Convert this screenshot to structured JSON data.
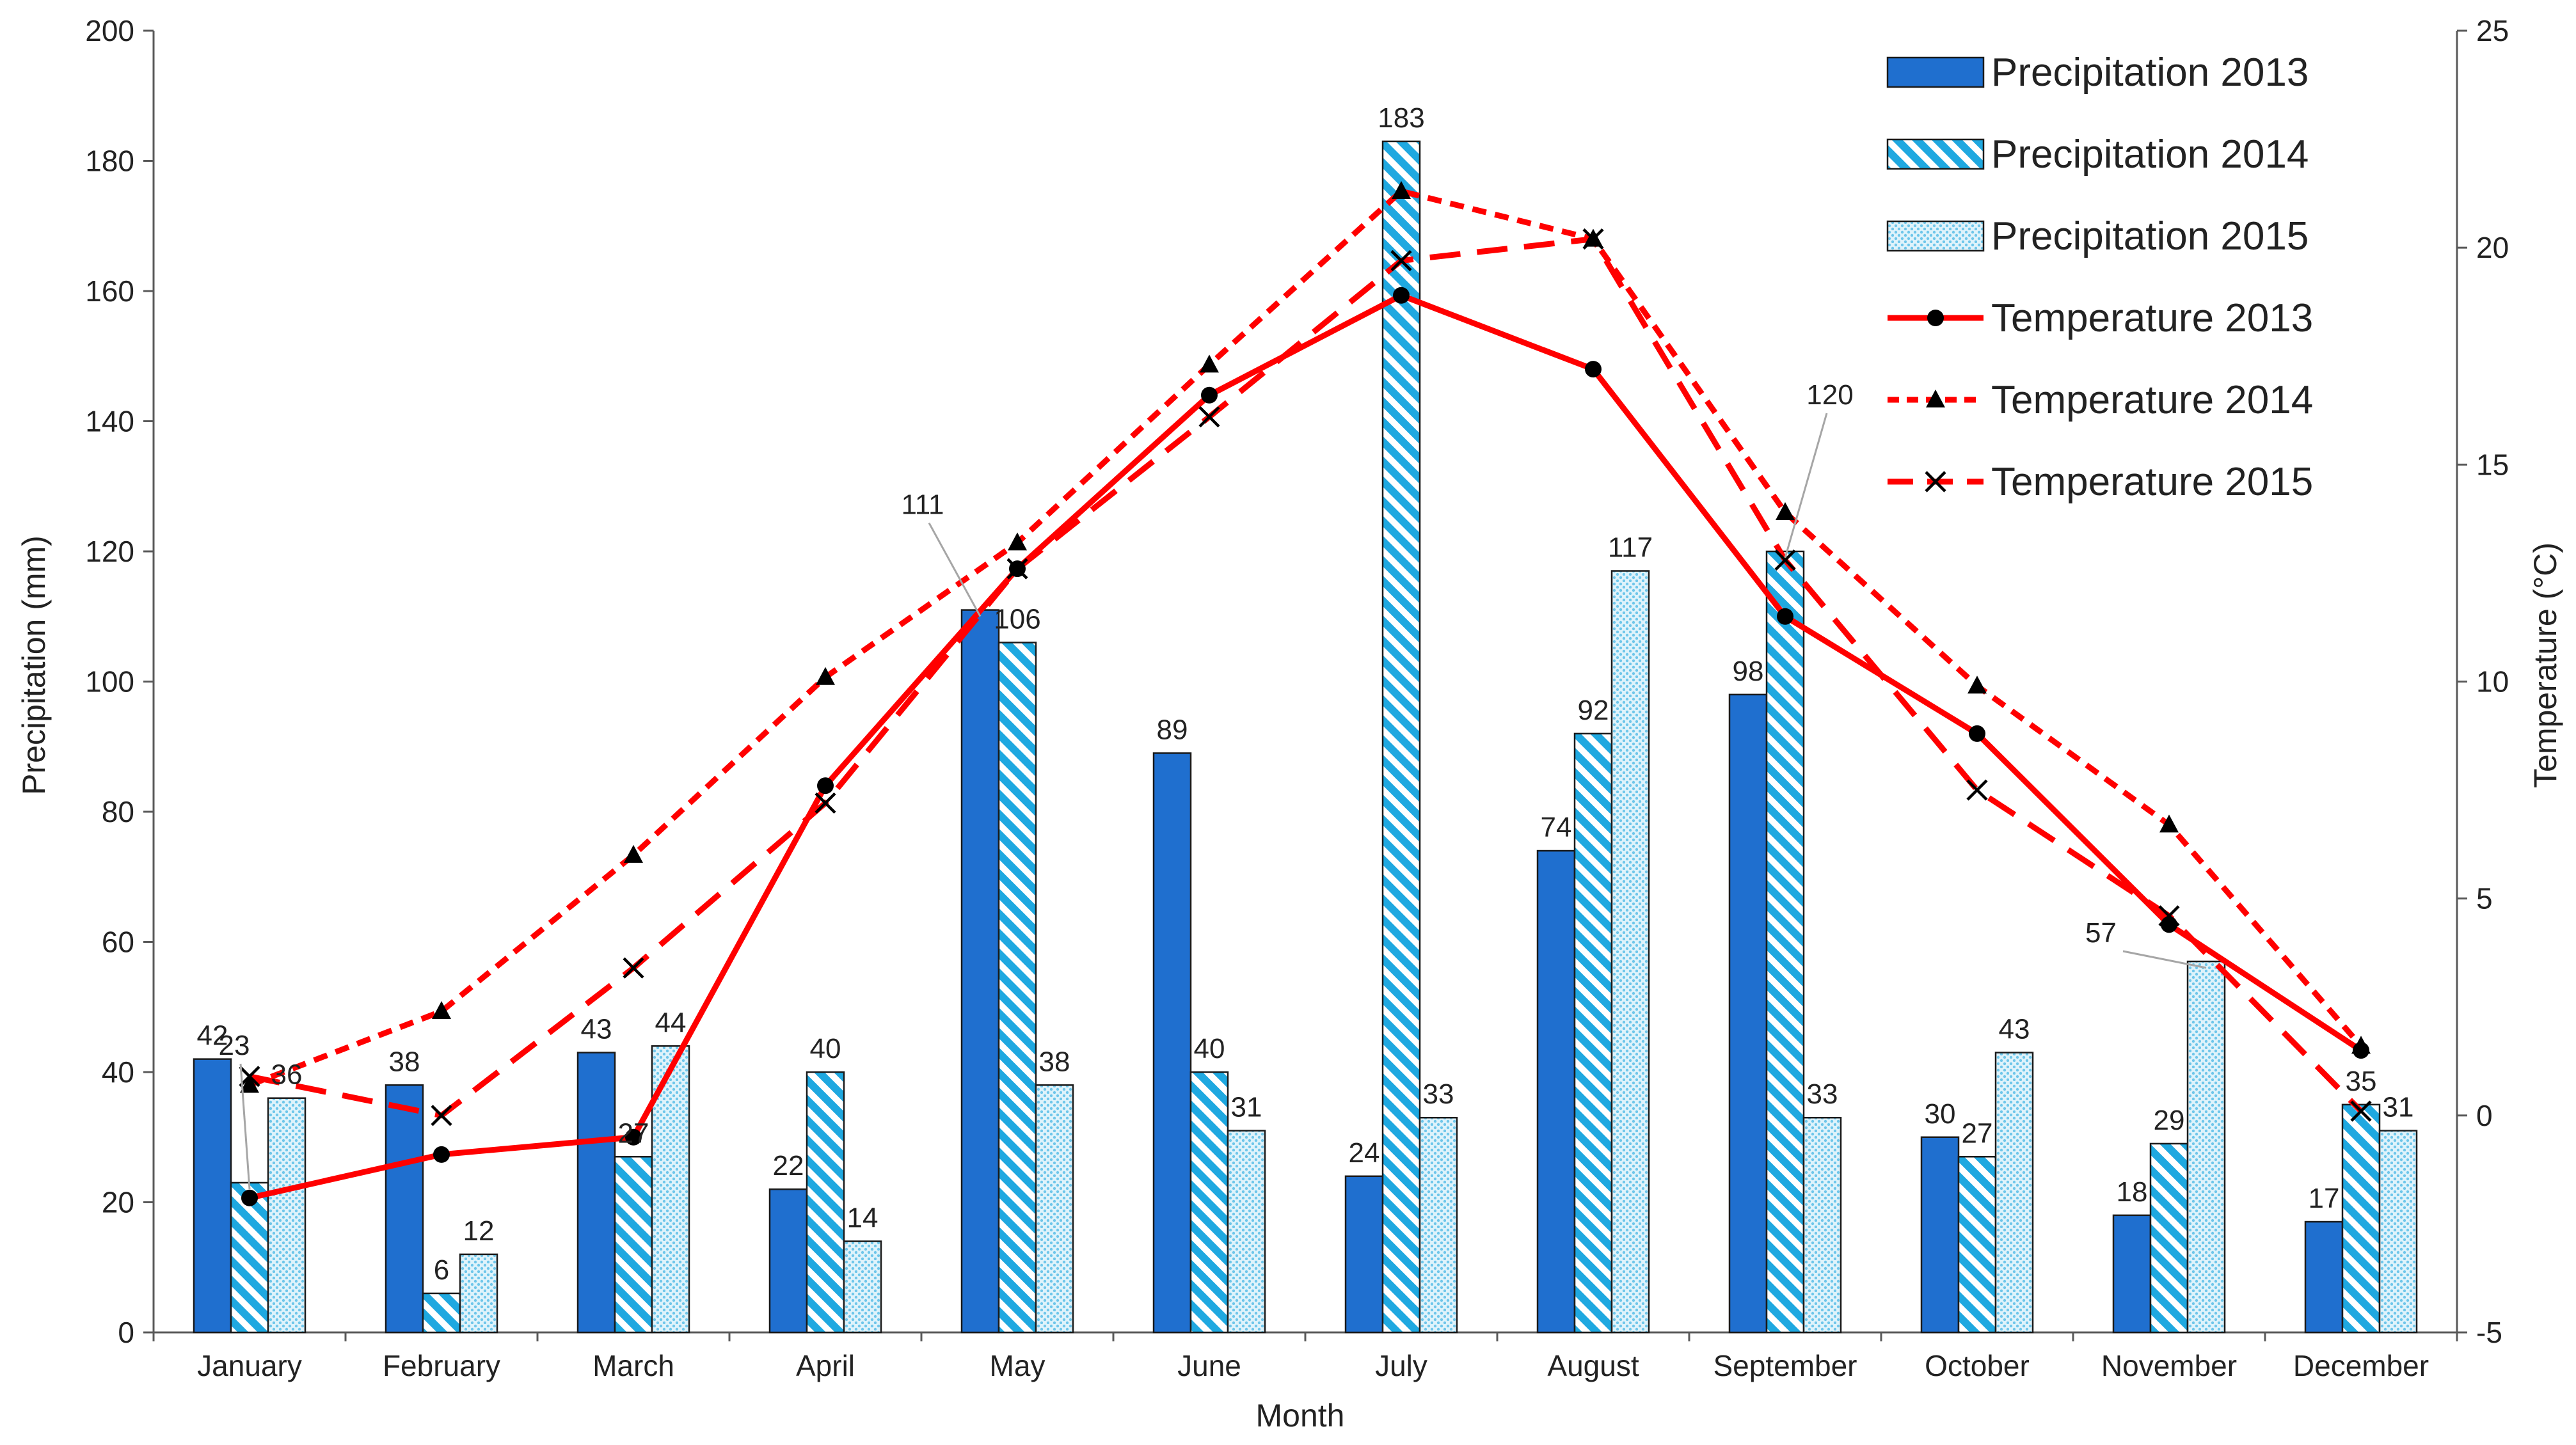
{
  "chart_data": {
    "type": "bar+line",
    "xlabel": "Month",
    "ylabel_left": "Precipitation (mm)",
    "ylabel_right": "Temperature (°C)",
    "ylim_left": [
      0,
      200
    ],
    "ylim_right": [
      -5,
      25
    ],
    "yticks_left": [
      0,
      20,
      40,
      60,
      80,
      100,
      120,
      140,
      160,
      180,
      200
    ],
    "yticks_right": [
      -5,
      0,
      5,
      10,
      15,
      20,
      25
    ],
    "categories": [
      "January",
      "February",
      "March",
      "April",
      "May",
      "June",
      "July",
      "August",
      "September",
      "October",
      "November",
      "December"
    ],
    "bar_series": [
      {
        "name": "Precipitation 2013",
        "values": [
          42,
          38,
          43,
          22,
          111,
          89,
          24,
          74,
          98,
          30,
          18,
          17
        ],
        "color": "#1f6fcf",
        "pattern": "solid"
      },
      {
        "name": "Precipitation 2014",
        "values": [
          23,
          6,
          27,
          40,
          106,
          40,
          183,
          92,
          120,
          27,
          29,
          35
        ],
        "color": "#1fa8e0",
        "pattern": "diagonal"
      },
      {
        "name": "Precipitation 2015",
        "values": [
          36,
          12,
          44,
          14,
          38,
          31,
          33,
          117,
          33,
          43,
          57,
          31
        ],
        "color": "#6ec6ea",
        "pattern": "dotted"
      }
    ],
    "line_series": [
      {
        "name": "Temperature 2013",
        "values": [
          -1.9,
          -0.9,
          -0.5,
          7.6,
          12.6,
          16.6,
          18.9,
          17.2,
          11.5,
          8.8,
          4.4,
          1.5
        ],
        "color": "#ff0000",
        "dash": "solid",
        "marker": "circle"
      },
      {
        "name": "Temperature 2014",
        "values": [
          0.7,
          2.4,
          6.0,
          10.1,
          13.2,
          17.3,
          21.3,
          20.2,
          13.9,
          9.9,
          6.7,
          1.6
        ],
        "color": "#ff0000",
        "dash": "dotted",
        "marker": "triangle"
      },
      {
        "name": "Temperature 2015",
        "values": [
          0.9,
          0.0,
          3.4,
          7.2,
          12.6,
          16.1,
          19.7,
          20.2,
          12.8,
          7.5,
          4.6,
          0.1
        ],
        "color": "#ff0000",
        "dash": "dashed",
        "marker": "x"
      }
    ],
    "legend_position": "top-right"
  }
}
